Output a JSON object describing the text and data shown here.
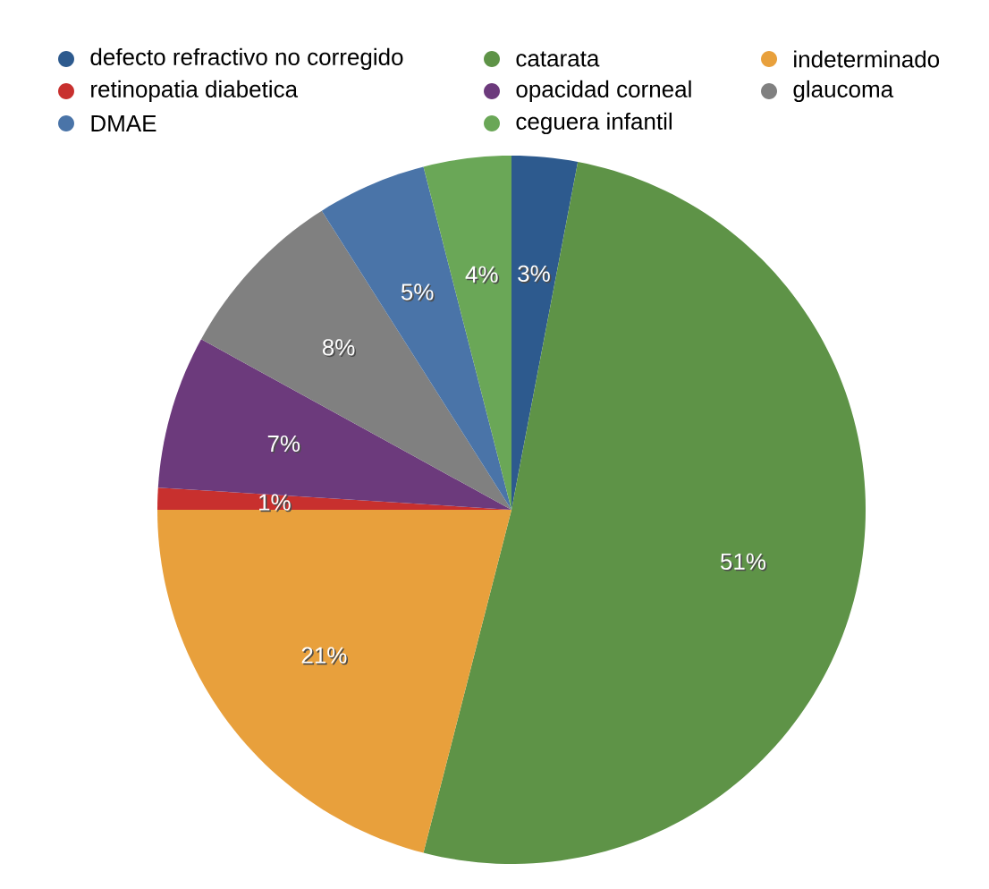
{
  "chart_data": {
    "type": "pie",
    "categories": [
      "defecto refractivo no corregido",
      "catarata",
      "indeterminado",
      "retinopatia diabetica",
      "opacidad corneal",
      "glaucoma",
      "DMAE",
      "ceguera infantil"
    ],
    "values": [
      3,
      51,
      21,
      1,
      7,
      8,
      5,
      4
    ],
    "value_labels": [
      "3%",
      "51%",
      "21%",
      "1%",
      "7%",
      "8%",
      "5%",
      "4%"
    ],
    "colors": [
      "#2d5a8e",
      "#5e9347",
      "#e8a03c",
      "#c8302e",
      "#6c3a7c",
      "#808080",
      "#4a74a8",
      "#6aa757"
    ],
    "legend": "top"
  }
}
